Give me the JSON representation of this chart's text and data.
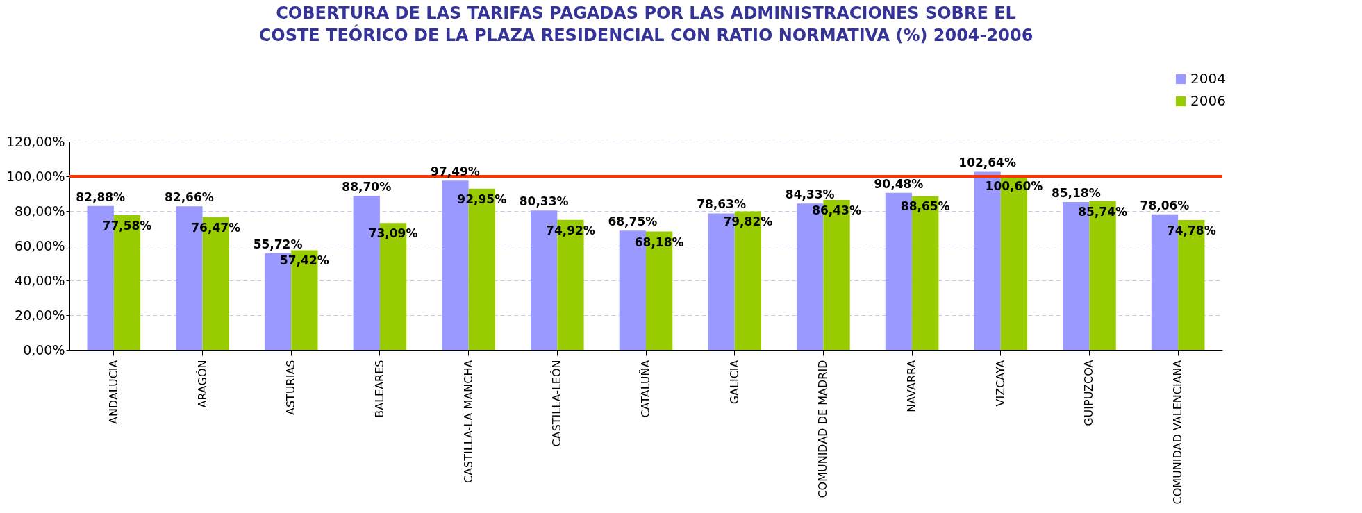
{
  "chart_data": {
    "type": "bar",
    "title": "COBERTURA DE LAS TARIFAS PAGADAS POR LAS ADMINISTRACIONES SOBRE EL COSTE TEÓRICO DE LA PLAZA RESIDENCIAL CON RATIO NORMATIVA (%) 2004-2006",
    "categories": [
      "ANDALUCIA",
      "ARAGÓN",
      "ASTURIAS",
      "BALEARES",
      "CASTILLA-LA MANCHA",
      "CASTILLA-LEÓN",
      "CATALUÑA",
      "GALICIA",
      "COMUNIDAD DE MADRID",
      "NAVARRA",
      "VIZCAYA",
      "GUIPUZCOA",
      "COMUNIDAD VALENCIANA"
    ],
    "series": [
      {
        "name": "2004",
        "color": "#9999ff",
        "values": [
          82.88,
          82.66,
          55.72,
          88.7,
          97.49,
          80.33,
          68.75,
          78.63,
          84.33,
          90.48,
          102.64,
          85.18,
          78.06
        ],
        "value_labels": [
          "82,88%",
          "82,66%",
          "55,72%",
          "88,70%",
          "97,49%",
          "80,33%",
          "68,75%",
          "78,63%",
          "84,33%",
          "90,48%",
          "102,64%",
          "85,18%",
          "78,06%"
        ]
      },
      {
        "name": "2006",
        "color": "#99cc00",
        "values": [
          77.58,
          76.47,
          57.42,
          73.09,
          92.95,
          74.92,
          68.18,
          79.82,
          86.43,
          88.65,
          100.6,
          85.74,
          74.78
        ],
        "value_labels": [
          "77,58%",
          "76,47%",
          "57,42%",
          "73,09%",
          "92,95%",
          "74,92%",
          "68,18%",
          "79,82%",
          "86,43%",
          "88,65%",
          "100,60%",
          "85,74%",
          "74,78%"
        ]
      }
    ],
    "ylim": [
      0,
      120
    ],
    "yticks": [
      {
        "value": 0,
        "label": "0,00%"
      },
      {
        "value": 20,
        "label": "20,00%"
      },
      {
        "value": 40,
        "label": "40,00%"
      },
      {
        "value": 60,
        "label": "60,00%"
      },
      {
        "value": 80,
        "label": "80,00%"
      },
      {
        "value": 100,
        "label": "100,00%"
      },
      {
        "value": 120,
        "label": "120,00%"
      }
    ],
    "ref_lines": [
      {
        "axis": "y",
        "value": 100,
        "color": "#ff3300"
      }
    ],
    "grid": "y",
    "legend": "top right"
  }
}
